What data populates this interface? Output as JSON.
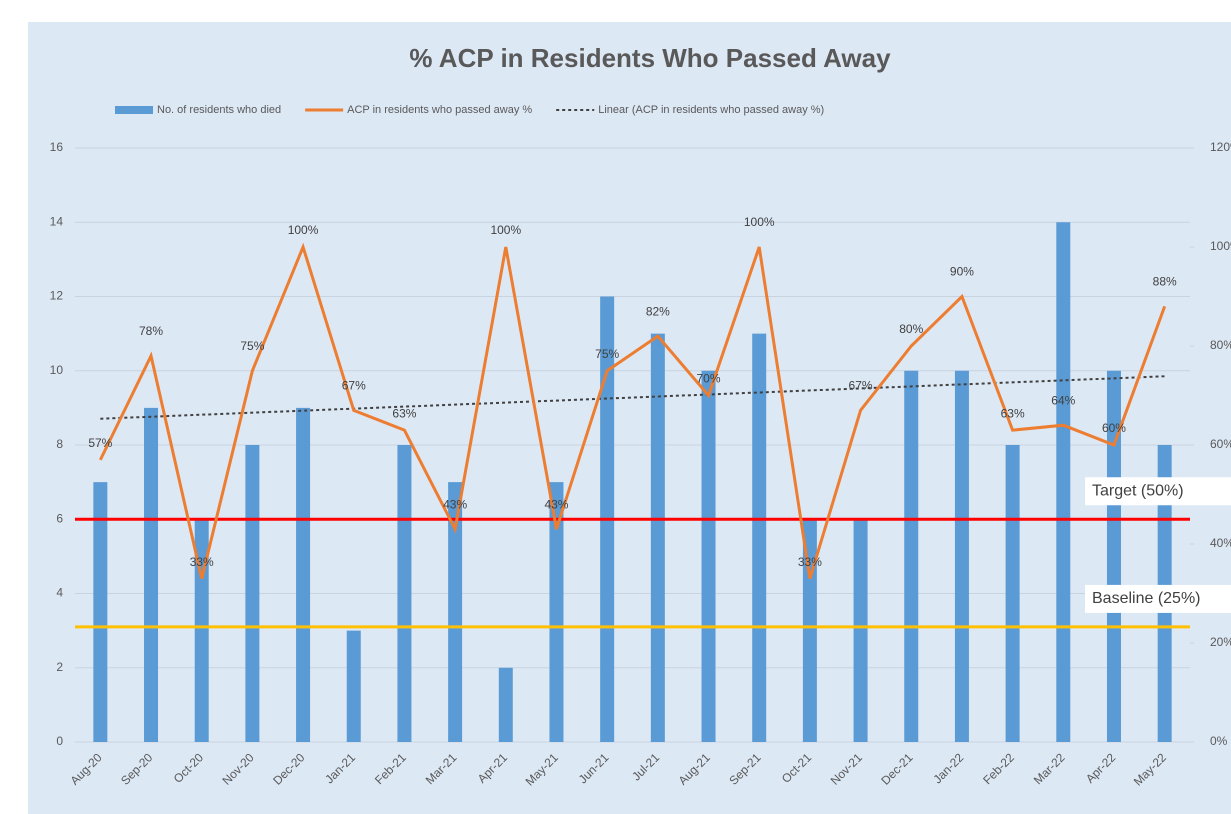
{
  "chart_data": {
    "type": "bar-line",
    "title": "% ACP in Residents Who Passed Away",
    "categories": [
      "Aug-20",
      "Sep-20",
      "Oct-20",
      "Nov-20",
      "Dec-20",
      "Jan-21",
      "Feb-21",
      "Mar-21",
      "Apr-21",
      "May-21",
      "Jun-21",
      "Jul-21",
      "Aug-21",
      "Sep-21",
      "Oct-21",
      "Nov-21",
      "Dec-21",
      "Jan-22",
      "Feb-22",
      "Mar-22",
      "Apr-22",
      "May-22"
    ],
    "series": [
      {
        "name": "No. of residents who died",
        "type": "bar",
        "color": "#5b9bd5",
        "values": [
          7,
          9,
          6,
          8,
          9,
          3,
          8,
          7,
          2,
          7,
          12,
          11,
          10,
          11,
          6,
          6,
          10,
          10,
          8,
          14,
          10,
          8
        ]
      },
      {
        "name": "ACP in residents who passed away %",
        "type": "line",
        "axis": "y2",
        "color": "#ed7d31",
        "values": [
          57,
          78,
          33,
          75,
          100,
          67,
          63,
          43,
          100,
          43,
          75,
          82,
          70,
          100,
          33,
          67,
          80,
          90,
          63,
          64,
          60,
          88
        ],
        "value_labels": [
          "57%",
          "78%",
          "33%",
          "75%",
          "100%",
          "67%",
          "63%",
          "43%",
          "100%",
          "43%",
          "75%",
          "82%",
          "70%",
          "100%",
          "33%",
          "67%",
          "80%",
          "90%",
          "63%",
          "64%",
          "60%",
          "88%"
        ]
      }
    ],
    "trendline": {
      "name": "Linear (ACP in residents who passed away %)",
      "of_series": 1,
      "color": "#404040"
    },
    "ylim": [
      0,
      16
    ],
    "yticks": [
      0,
      2,
      4,
      6,
      8,
      10,
      12,
      14,
      16
    ],
    "y2lim": [
      0,
      120
    ],
    "y2ticks": [
      {
        "value": 0,
        "label": "0%"
      },
      {
        "value": 20,
        "label": "20%"
      },
      {
        "value": 40,
        "label": "40%"
      },
      {
        "value": 60,
        "label": "60%"
      },
      {
        "value": 80,
        "label": "80%"
      },
      {
        "value": 100,
        "label": "100%"
      },
      {
        "value": 120,
        "label": "120%"
      }
    ],
    "reference_lines": [
      {
        "label": "Target (50%)",
        "y": 6,
        "color": "#ff0000"
      },
      {
        "label": "Baseline (25%)",
        "y": 3.1,
        "color": "#ffc000"
      }
    ],
    "grid": true
  }
}
